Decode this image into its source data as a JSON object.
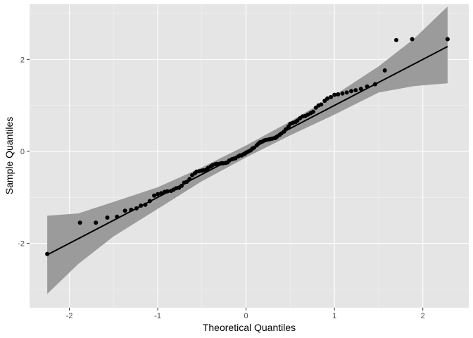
{
  "chart_data": {
    "type": "scatter",
    "title": "",
    "xlabel": "Theoretical Quantiles",
    "ylabel": "Sample Quantiles",
    "xlim": [
      -2.45,
      2.52
    ],
    "ylim": [
      -3.4,
      3.2
    ],
    "x_ticks": [
      -2,
      -1,
      0,
      1,
      2
    ],
    "y_ticks": [
      -2,
      0,
      2
    ],
    "x_tick_labels": [
      "-2",
      "-1",
      "0",
      "1",
      "2"
    ],
    "y_tick_labels": [
      "-2",
      "0",
      "2"
    ],
    "grid": true,
    "colors": {
      "panel_background": "#e5e5e5",
      "grid_major": "#ffffff",
      "grid_minor": "#f2f2f2",
      "points": "#000000",
      "reference_line": "#000000",
      "confidence_band": "#9b9b9b"
    },
    "reference_line": {
      "slope": 1.0,
      "intercept": 0.0
    },
    "confidence_band": {
      "x": [
        -2.25,
        -1.9,
        -1.5,
        -1.0,
        -0.5,
        0.0,
        0.5,
        1.0,
        1.5,
        1.9,
        2.28
      ],
      "lower": [
        -3.1,
        -2.45,
        -1.85,
        -1.25,
        -0.65,
        -0.13,
        0.35,
        0.8,
        1.28,
        1.42,
        1.48
      ],
      "upper": [
        -1.4,
        -1.35,
        -1.1,
        -0.78,
        -0.35,
        0.13,
        0.65,
        1.22,
        1.85,
        2.45,
        3.15
      ]
    },
    "series": [
      {
        "x": [
          -2.25,
          -1.88,
          -1.7,
          -1.57,
          -1.46,
          -1.37,
          -1.3,
          -1.24,
          -1.19,
          -1.14,
          -1.09,
          -1.04,
          -1.0,
          -0.96,
          -0.92,
          -0.89,
          -0.85,
          -0.82,
          -0.79,
          -0.76,
          -0.73,
          -0.7,
          -0.67,
          -0.64,
          -0.61,
          -0.58,
          -0.56,
          -0.53,
          -0.5,
          -0.48,
          -0.45,
          -0.43,
          -0.4,
          -0.38,
          -0.35,
          -0.33,
          -0.3,
          -0.28,
          -0.26,
          -0.23,
          -0.21,
          -0.19,
          -0.16,
          -0.14,
          -0.12,
          -0.09,
          -0.07,
          -0.05,
          -0.02,
          0.0,
          0.02,
          0.05,
          0.07,
          0.09,
          0.12,
          0.14,
          0.16,
          0.19,
          0.21,
          0.23,
          0.26,
          0.28,
          0.3,
          0.33,
          0.35,
          0.38,
          0.4,
          0.43,
          0.45,
          0.48,
          0.5,
          0.53,
          0.56,
          0.58,
          0.61,
          0.64,
          0.67,
          0.7,
          0.73,
          0.76,
          0.79,
          0.82,
          0.85,
          0.89,
          0.92,
          0.96,
          1.0,
          1.04,
          1.09,
          1.14,
          1.19,
          1.24,
          1.3,
          1.37,
          1.46,
          1.57,
          1.7,
          1.88,
          2.28
        ],
        "y": [
          -2.23,
          -1.55,
          -1.55,
          -1.44,
          -1.42,
          -1.29,
          -1.27,
          -1.24,
          -1.18,
          -1.16,
          -1.08,
          -0.96,
          -0.93,
          -0.91,
          -0.88,
          -0.87,
          -0.86,
          -0.83,
          -0.8,
          -0.79,
          -0.75,
          -0.68,
          -0.66,
          -0.6,
          -0.52,
          -0.48,
          -0.44,
          -0.43,
          -0.42,
          -0.41,
          -0.4,
          -0.36,
          -0.33,
          -0.3,
          -0.28,
          -0.27,
          -0.27,
          -0.26,
          -0.26,
          -0.25,
          -0.24,
          -0.2,
          -0.17,
          -0.16,
          -0.15,
          -0.11,
          -0.09,
          -0.09,
          -0.06,
          -0.03,
          -0.01,
          0.02,
          0.06,
          0.08,
          0.13,
          0.17,
          0.2,
          0.22,
          0.24,
          0.25,
          0.26,
          0.27,
          0.28,
          0.29,
          0.32,
          0.36,
          0.39,
          0.43,
          0.48,
          0.54,
          0.6,
          0.62,
          0.64,
          0.67,
          0.72,
          0.76,
          0.77,
          0.8,
          0.83,
          0.86,
          0.95,
          1.0,
          1.02,
          1.1,
          1.15,
          1.18,
          1.23,
          1.24,
          1.26,
          1.28,
          1.31,
          1.33,
          1.36,
          1.41,
          1.46,
          1.76,
          2.42,
          2.44,
          2.44
        ]
      }
    ]
  }
}
